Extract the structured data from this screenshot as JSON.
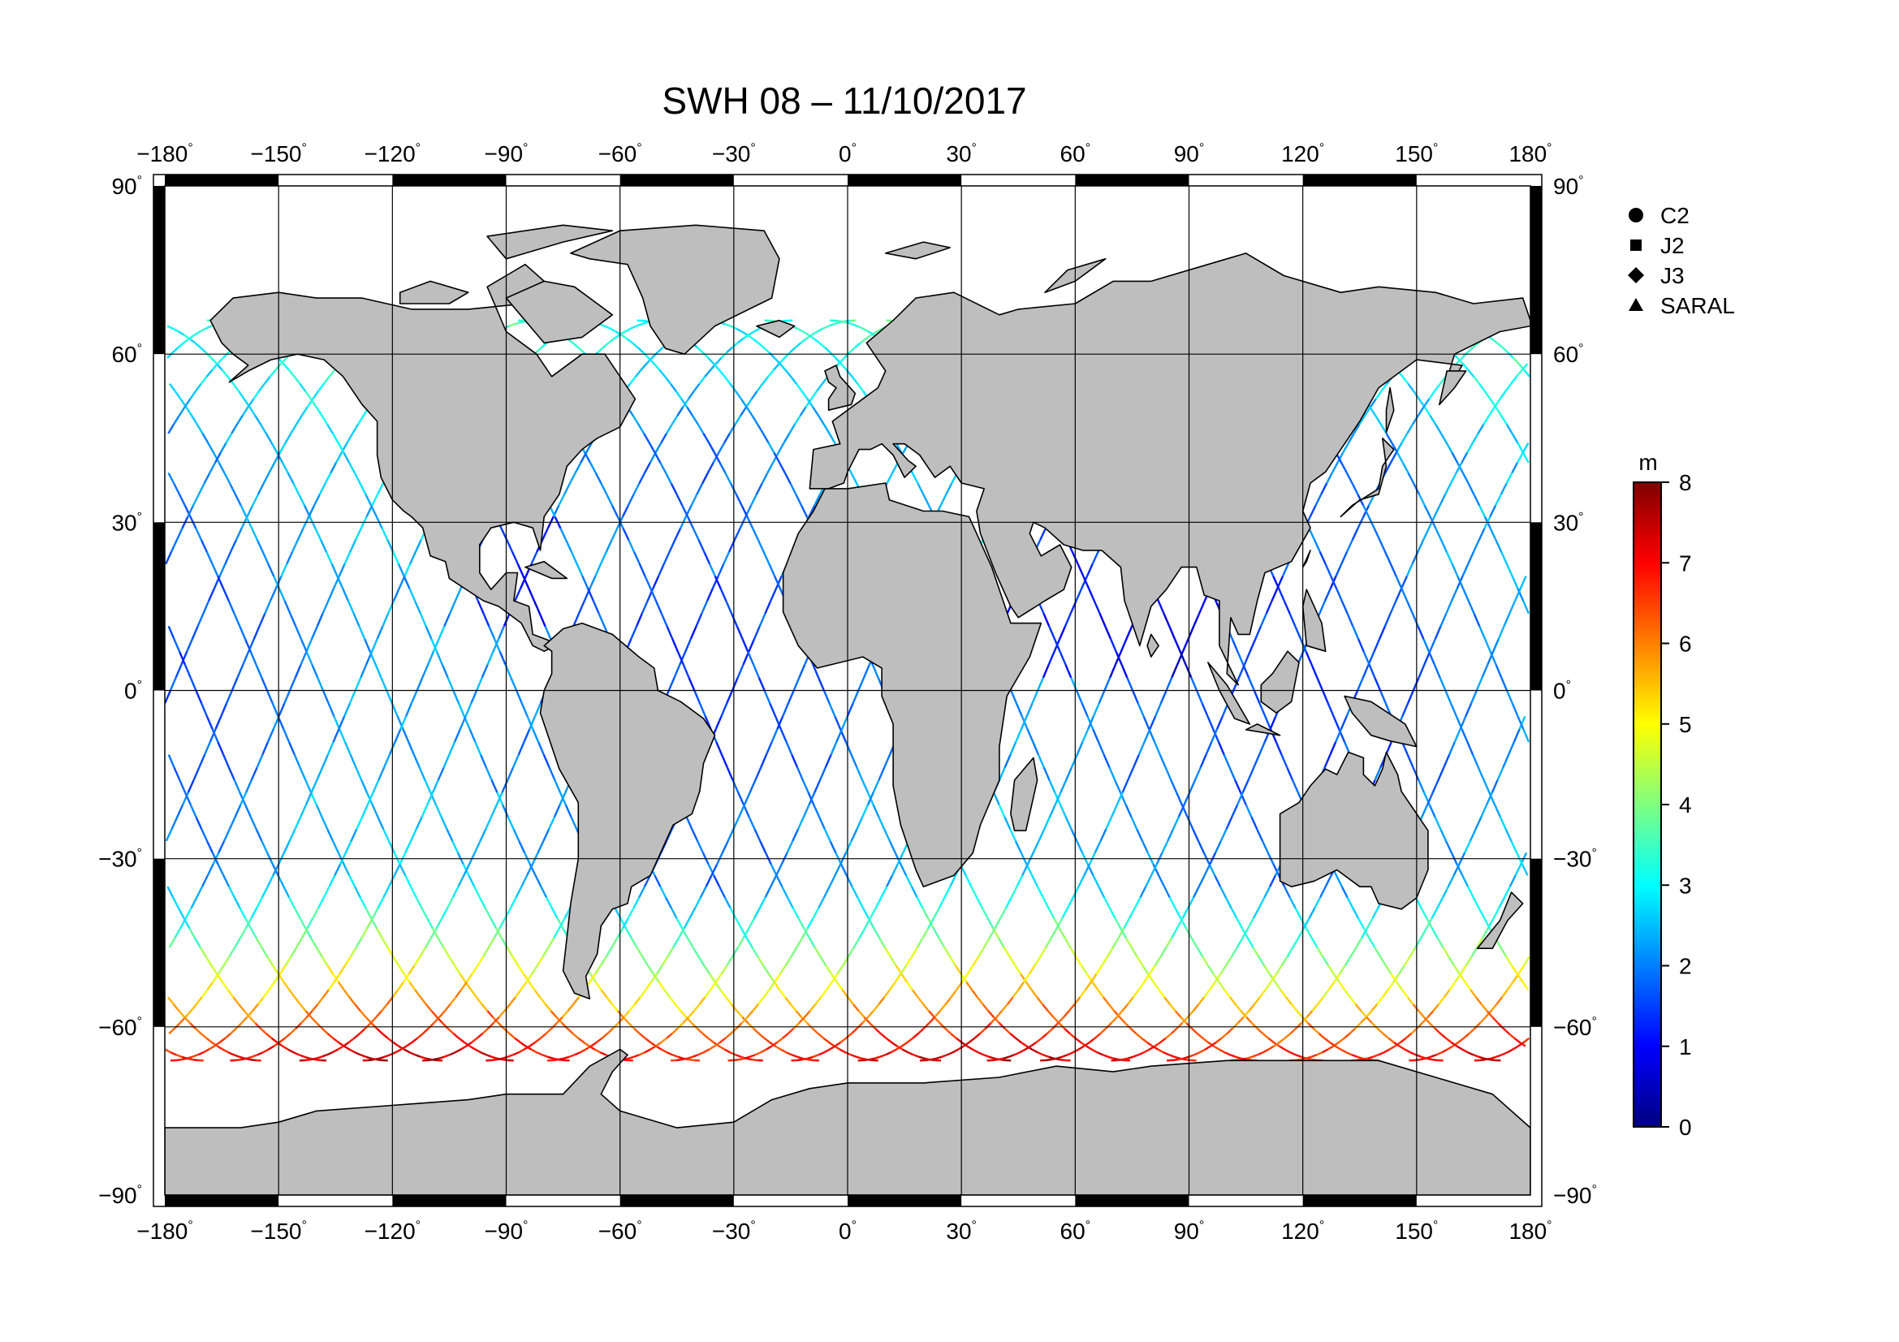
{
  "title": "SWH 08 – 11/10/2017",
  "map": {
    "lon_ticks": [
      "−180",
      "−150",
      "−120",
      "−90",
      "−60",
      "−30",
      "0",
      "30",
      "60",
      "90",
      "120",
      "150",
      "180"
    ],
    "lat_ticks": [
      "90",
      "60",
      "30",
      "0",
      "−30",
      "−60",
      "−90"
    ],
    "degree_symbol": "°",
    "ocean_color": "#ffffff",
    "land_color": "#bebebe",
    "coast_color": "#000000"
  },
  "legend": {
    "items": [
      {
        "marker": "circle-icon",
        "label": "C2"
      },
      {
        "marker": "square-icon",
        "label": "J2"
      },
      {
        "marker": "diamond-icon",
        "label": "J3"
      },
      {
        "marker": "triangle-icon",
        "label": "SARAL"
      }
    ]
  },
  "colorbar": {
    "unit": "m",
    "ticks": [
      "0",
      "1",
      "2",
      "3",
      "4",
      "5",
      "6",
      "7",
      "8"
    ],
    "colors": [
      "#00007f",
      "#0000ff",
      "#007fff",
      "#00ffff",
      "#7fff7f",
      "#ffff00",
      "#ff7f00",
      "#ff0000",
      "#7f0000"
    ]
  }
}
